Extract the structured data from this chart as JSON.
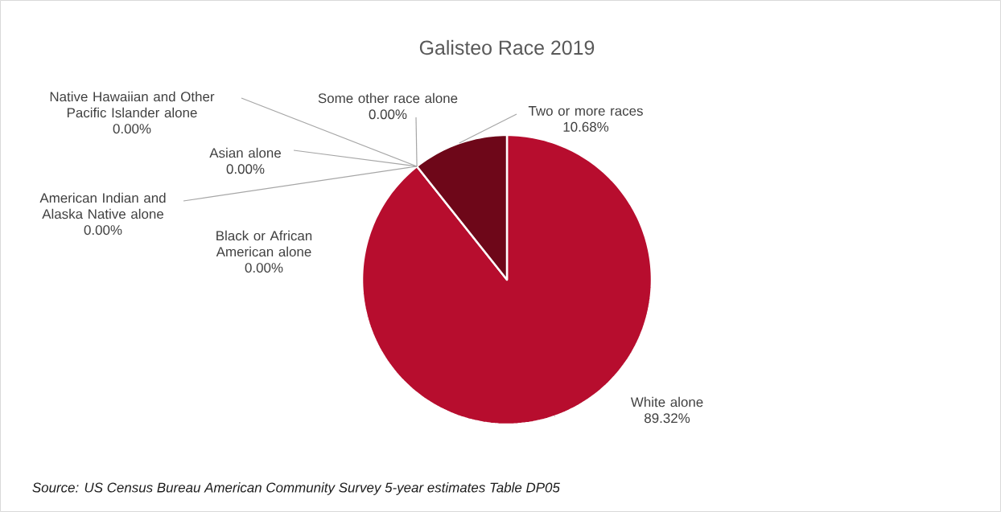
{
  "chart_data": {
    "type": "pie",
    "title": "Galisteo Race 2019",
    "categories": [
      "White alone",
      "Black or African American alone",
      "American Indian and Alaska Native alone",
      "Asian alone",
      "Native Hawaiian and Other Pacific Islander alone",
      "Some other race alone",
      "Two or more races"
    ],
    "values": [
      89.32,
      0,
      0,
      0,
      0,
      0,
      10.68
    ],
    "colors": [
      "#b70d2e",
      "#8c8c8c",
      "#a5a5a5",
      "#7f7f7f",
      "#bfbfbf",
      "#d9d9d9",
      "#6e0719"
    ],
    "value_labels": [
      "89.32%",
      "0.00%",
      "0.00%",
      "0.00%",
      "0.00%",
      "0.00%",
      "10.68%"
    ],
    "annotations": [
      "*Source: US Census Bureau American Community Survey 5-year estimates Table DP05*"
    ]
  }
}
